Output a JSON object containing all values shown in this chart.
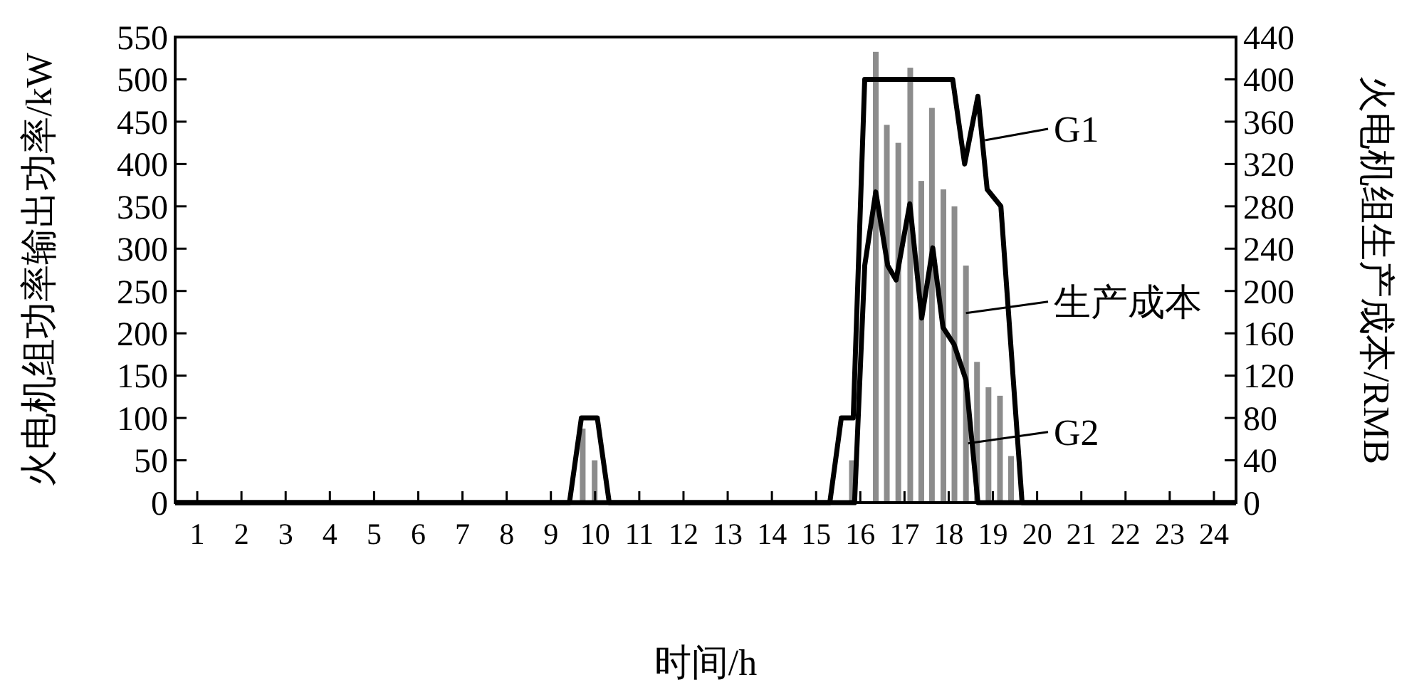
{
  "chart_data": {
    "type": "line",
    "xlabel": "时间/h",
    "ylabel": "火电机组功率输出功率/kW",
    "y2label": "火电机组生产成本/RMB",
    "xlim": [
      0.5,
      24.5
    ],
    "xticks": [
      1,
      2,
      3,
      4,
      5,
      6,
      7,
      8,
      9,
      10,
      11,
      12,
      13,
      14,
      15,
      16,
      17,
      18,
      19,
      20,
      21,
      22,
      23,
      24
    ],
    "ylim": [
      0,
      550
    ],
    "yticks": [
      0,
      50,
      100,
      150,
      200,
      250,
      300,
      350,
      400,
      450,
      500,
      550
    ],
    "y2lim": [
      0,
      440
    ],
    "y2ticks": [
      0,
      40,
      80,
      120,
      160,
      200,
      240,
      280,
      320,
      360,
      400,
      440
    ],
    "series": [
      {
        "type": "bar",
        "axis": "y2",
        "color": "#8c8c8c",
        "x": [
          9.72,
          9.99,
          15.81,
          16.35,
          16.6,
          16.86,
          17.13,
          17.38,
          17.62,
          17.88,
          18.13,
          18.39,
          18.64,
          18.9,
          19.16,
          19.41
        ],
        "values": [
          70,
          40,
          40,
          426,
          357,
          340,
          411,
          304,
          373,
          296,
          280,
          224,
          133,
          109,
          101,
          44
        ]
      },
      {
        "color": "#000000",
        "x": [
          0.5,
          9.42,
          9.69,
          10.05,
          10.32,
          15.31,
          15.57,
          15.84,
          16.1,
          18.09,
          18.36,
          18.66,
          18.87,
          19.18,
          19.66,
          24.5
        ],
        "values": [
          0,
          0,
          100,
          100,
          0,
          0,
          100,
          100,
          500,
          500,
          400,
          480,
          370,
          350,
          0,
          0
        ]
      },
      {
        "color": "#000000",
        "x": [
          0.5,
          15.87,
          16.1,
          16.35,
          16.62,
          16.81,
          17.12,
          17.39,
          17.64,
          17.87,
          18.12,
          18.39,
          18.66,
          24.5
        ],
        "values": [
          0,
          0,
          280,
          367,
          280,
          263,
          353,
          218,
          301,
          207,
          187,
          145,
          0,
          0
        ]
      }
    ],
    "annotations": [
      {
        "text": "G1",
        "x": 18.82,
        "y": 428
      },
      {
        "text": "生产成本",
        "x": 18.39,
        "y": 224
      },
      {
        "text": "G2",
        "x": 18.44,
        "y": 70
      }
    ]
  }
}
